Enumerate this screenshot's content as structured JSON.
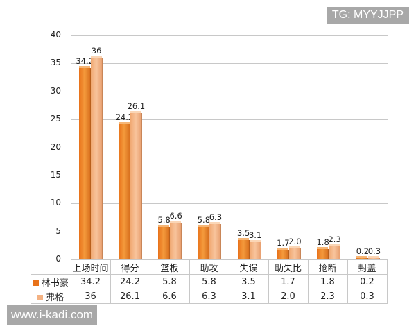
{
  "watermarks": {
    "top_right": "TG: MYYJJPP",
    "bottom_left": "www.i-kadi.com"
  },
  "colors": {
    "series1": "#e8721a",
    "series2": "#f4b283",
    "grid": "#c8c8c8"
  },
  "chart_data": {
    "type": "bar",
    "title": "",
    "xlabel": "",
    "ylabel": "",
    "ylim": [
      0,
      40
    ],
    "yticks": [
      0,
      5,
      10,
      15,
      20,
      25,
      30,
      35,
      40
    ],
    "grid": true,
    "legend_position": "data-table",
    "categories": [
      "上场时间",
      "得分",
      "篮板",
      "助攻",
      "失误",
      "助失比",
      "抢断",
      "封盖"
    ],
    "series": [
      {
        "name": "林书豪",
        "values": [
          34.2,
          24.2,
          5.8,
          5.8,
          3.5,
          1.7,
          1.8,
          0.2
        ],
        "labels": [
          "34.2",
          "24.2",
          "5.8",
          "5.8",
          "3.5",
          "1.7",
          "1.8",
          "0.2"
        ]
      },
      {
        "name": "弗格",
        "values": [
          36,
          26.1,
          6.6,
          6.3,
          3.1,
          2.0,
          2.3,
          0.3
        ],
        "labels": [
          "36",
          "26.1",
          "6.6",
          "6.3",
          "3.1",
          "2.0",
          "2.3",
          "0.3"
        ]
      }
    ],
    "table": {
      "header": [
        "上场时间",
        "得分",
        "篮板",
        "助攻",
        "失误",
        "助失比",
        "抢断",
        "封盖"
      ],
      "rows": [
        {
          "label": "林书豪",
          "cells": [
            "34.2",
            "24.2",
            "5.8",
            "5.8",
            "3.5",
            "1.7",
            "1.8",
            "0.2"
          ]
        },
        {
          "label": "弗格",
          "cells": [
            "36",
            "26.1",
            "6.6",
            "6.3",
            "3.1",
            "2.0",
            "2.3",
            "0.3"
          ]
        }
      ]
    }
  }
}
